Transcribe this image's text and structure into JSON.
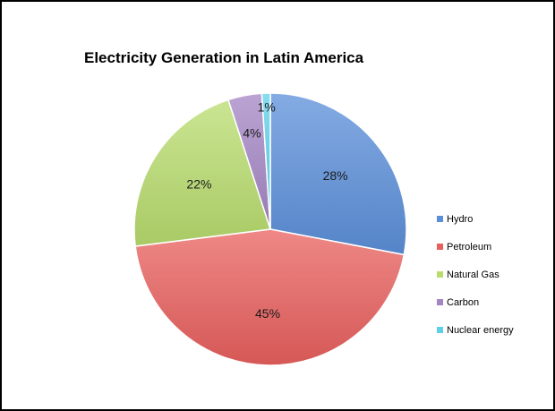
{
  "chart_data": {
    "type": "pie",
    "title": "Electricity Generation in Latin America",
    "categories": [
      "Hydro",
      "Petroleum",
      "Natural Gas",
      "Carbon",
      "Nuclear energy"
    ],
    "values": [
      28,
      45,
      22,
      4,
      1
    ],
    "data_labels": [
      "28%",
      "45%",
      "22%",
      "4%",
      "1%"
    ],
    "colors": [
      "#5b8fd9",
      "#e8605e",
      "#b8dc6e",
      "#a486c4",
      "#5fd0ea"
    ],
    "legend_position": "right"
  }
}
